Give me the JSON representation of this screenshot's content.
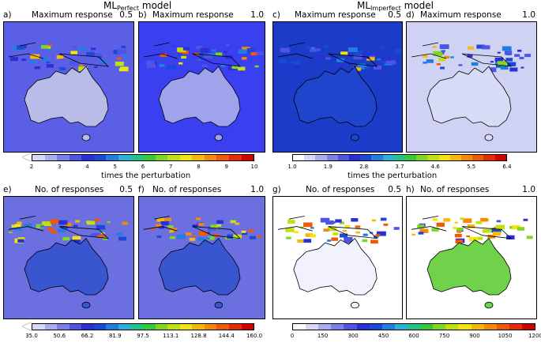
{
  "titles": {
    "left": {
      "prefix": "ML",
      "sub": "Perfect",
      "suffix": " model"
    },
    "right": {
      "prefix": "ML",
      "sub": "Imperfect",
      "suffix": " model"
    }
  },
  "panels": [
    {
      "letter": "a)",
      "title": "Maximum response",
      "threshold": "0.5",
      "bg": "#5b5fe6",
      "land": "#b8bce6",
      "hot": 0.25
    },
    {
      "letter": "b)",
      "title": "Maximum response",
      "threshold": "1.0",
      "bg": "#3a3ff0",
      "land": "#9ea3ec",
      "hot": 0.35
    },
    {
      "letter": "c)",
      "title": "Maximum response",
      "threshold": "0.5",
      "bg": "#1a3cc8",
      "land": "#1f45cc",
      "hot": 0.15
    },
    {
      "letter": "d)",
      "title": "Maximum response",
      "threshold": "1.0",
      "bg": "#cfd2f2",
      "land": "#d8dbf5",
      "hot": 0.12
    },
    {
      "letter": "e)",
      "title": "No. of responses",
      "threshold": "0.5",
      "bg": "#6b6fe0",
      "land": "#3a55d0",
      "hot": 0.6
    },
    {
      "letter": "f)",
      "title": "No. of responses",
      "threshold": "1.0",
      "bg": "#6b6fe0",
      "land": "#3a55d0",
      "hot": 0.65
    },
    {
      "letter": "g)",
      "title": "No. of responses",
      "threshold": "0.5",
      "bg": "#ffffff",
      "land": "#f2f2ff",
      "hot": 0.55
    },
    {
      "letter": "h)",
      "title": "No. of responses",
      "threshold": "1.0",
      "bg": "#ffffff",
      "land": "#6fd24a",
      "hot": 0.75
    }
  ],
  "colorbars": {
    "top_left": {
      "ticks": [
        "2",
        "3",
        "4",
        "5",
        "6",
        "7",
        "8",
        "9",
        "10"
      ],
      "label": "times the perturbation"
    },
    "top_right": {
      "ticks": [
        "1.0",
        "1.9",
        "2.8",
        "3.7",
        "4.6",
        "5.5",
        "6.4"
      ],
      "label": "times the perturbation"
    },
    "bottom_left": {
      "ticks": [
        "35.0",
        "50.6",
        "66.2",
        "81.9",
        "97.5",
        "113.1",
        "128.8",
        "144.4",
        "160.0"
      ]
    },
    "bottom_right": {
      "ticks": [
        "0",
        "150",
        "300",
        "450",
        "600",
        "750",
        "900",
        "1050",
        "1200"
      ]
    }
  },
  "colors": {
    "scale": [
      "#ffffff",
      "#d6d8f6",
      "#a9adf0",
      "#7b80ea",
      "#4e54e4",
      "#2a2fd8",
      "#1a49d6",
      "#1f7ee0",
      "#2bb0d8",
      "#22c38a",
      "#36c93a",
      "#7fd820",
      "#c2e010",
      "#f2e40c",
      "#f7b80a",
      "#f58a08",
      "#f05a06",
      "#e52a04",
      "#d40000"
    ]
  }
}
